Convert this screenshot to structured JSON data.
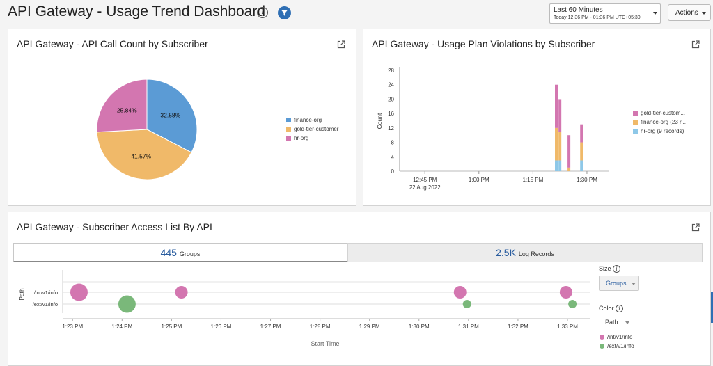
{
  "header": {
    "title": "API Gateway - Usage Trend Dashboard",
    "info_glyph": "i",
    "time_range": {
      "label": "Last 60 Minutes",
      "detail": "Today 12:36 PM - 01:36 PM UTC+05:30"
    },
    "actions_label": "Actions"
  },
  "call_count": {
    "title": "API Gateway - API Call Count by Subscriber",
    "chart_data": {
      "type": "pie",
      "title": "API Gateway - API Call Count by Subscriber",
      "labels": [
        "finance-org",
        "gold-tier-customer",
        "hr-org"
      ],
      "values": [
        32.58,
        41.57,
        25.84
      ],
      "value_labels": [
        "32.58%",
        "41.57%",
        "25.84%"
      ],
      "colors": [
        "#5b9bd5",
        "#f0b969",
        "#d376b0"
      ],
      "legend": "right"
    }
  },
  "violations": {
    "title": "API Gateway - Usage Plan Violations by Subscriber",
    "chart_data": {
      "type": "bar",
      "stacked": true,
      "title": "API Gateway - Usage Plan Violations by Subscriber",
      "ylabel": "Count",
      "ylim": [
        0,
        28
      ],
      "yticks": [
        "0",
        "4",
        "8",
        "12",
        "16",
        "20",
        "24",
        "28"
      ],
      "x_ticks": [
        {
          "t": 45,
          "label": "12:45 PM",
          "sub": "22 Aug 2022"
        },
        {
          "t": 60,
          "label": "1:00 PM",
          "sub": ""
        },
        {
          "t": 75,
          "label": "1:15 PM",
          "sub": ""
        },
        {
          "t": 90,
          "label": "1:30 PM",
          "sub": ""
        }
      ],
      "x_min_time": 38,
      "x_max_time": 96,
      "times": [
        81.5,
        82.5,
        85.0,
        88.5
      ],
      "series": [
        {
          "name": "hr-org (9 records)",
          "color": "#8ec8e8",
          "values": [
            3,
            3,
            0,
            3
          ]
        },
        {
          "name": "finance-org (23 r...",
          "color": "#f0b969",
          "values": [
            9,
            8,
            1,
            5
          ]
        },
        {
          "name": "gold-tier-custom...",
          "color": "#d376b0",
          "values": [
            12,
            9,
            9,
            5
          ]
        }
      ],
      "legend": "right"
    }
  },
  "access_list": {
    "title": "API Gateway - Subscriber Access List By API",
    "tabs": [
      {
        "count": "445",
        "unit": "Groups"
      },
      {
        "count": "2.5K",
        "unit": "Log Records"
      }
    ],
    "size_label": "Size",
    "size_value": "Groups",
    "color_label": "Color",
    "color_value": "Path",
    "chart_data": {
      "type": "scatter",
      "xlabel": "Start Time",
      "ylabel": "Path",
      "categories": [
        "/int/v1/info",
        "/ext/v1/info"
      ],
      "x_ticks": [
        "1:23 PM",
        "1:24 PM",
        "1:25 PM",
        "1:26 PM",
        "1:27 PM",
        "1:28 PM",
        "1:29 PM",
        "1:30 PM",
        "1:31 PM",
        "1:32 PM",
        "1:33 PM"
      ],
      "x_min": 82.8,
      "x_max": 93.45,
      "series": [
        {
          "name": "/int/v1/info",
          "color": "#d376b0",
          "points": [
            {
              "x": 83.13,
              "size": 3
            },
            {
              "x": 85.2,
              "size": 2
            },
            {
              "x": 90.83,
              "size": 2
            },
            {
              "x": 92.97,
              "size": 2
            }
          ]
        },
        {
          "name": "/ext/v1/info",
          "color": "#7ab87a",
          "points": [
            {
              "x": 84.1,
              "size": 3
            },
            {
              "x": 90.97,
              "size": 1
            },
            {
              "x": 93.1,
              "size": 1
            }
          ]
        }
      ],
      "legend": "right"
    }
  }
}
